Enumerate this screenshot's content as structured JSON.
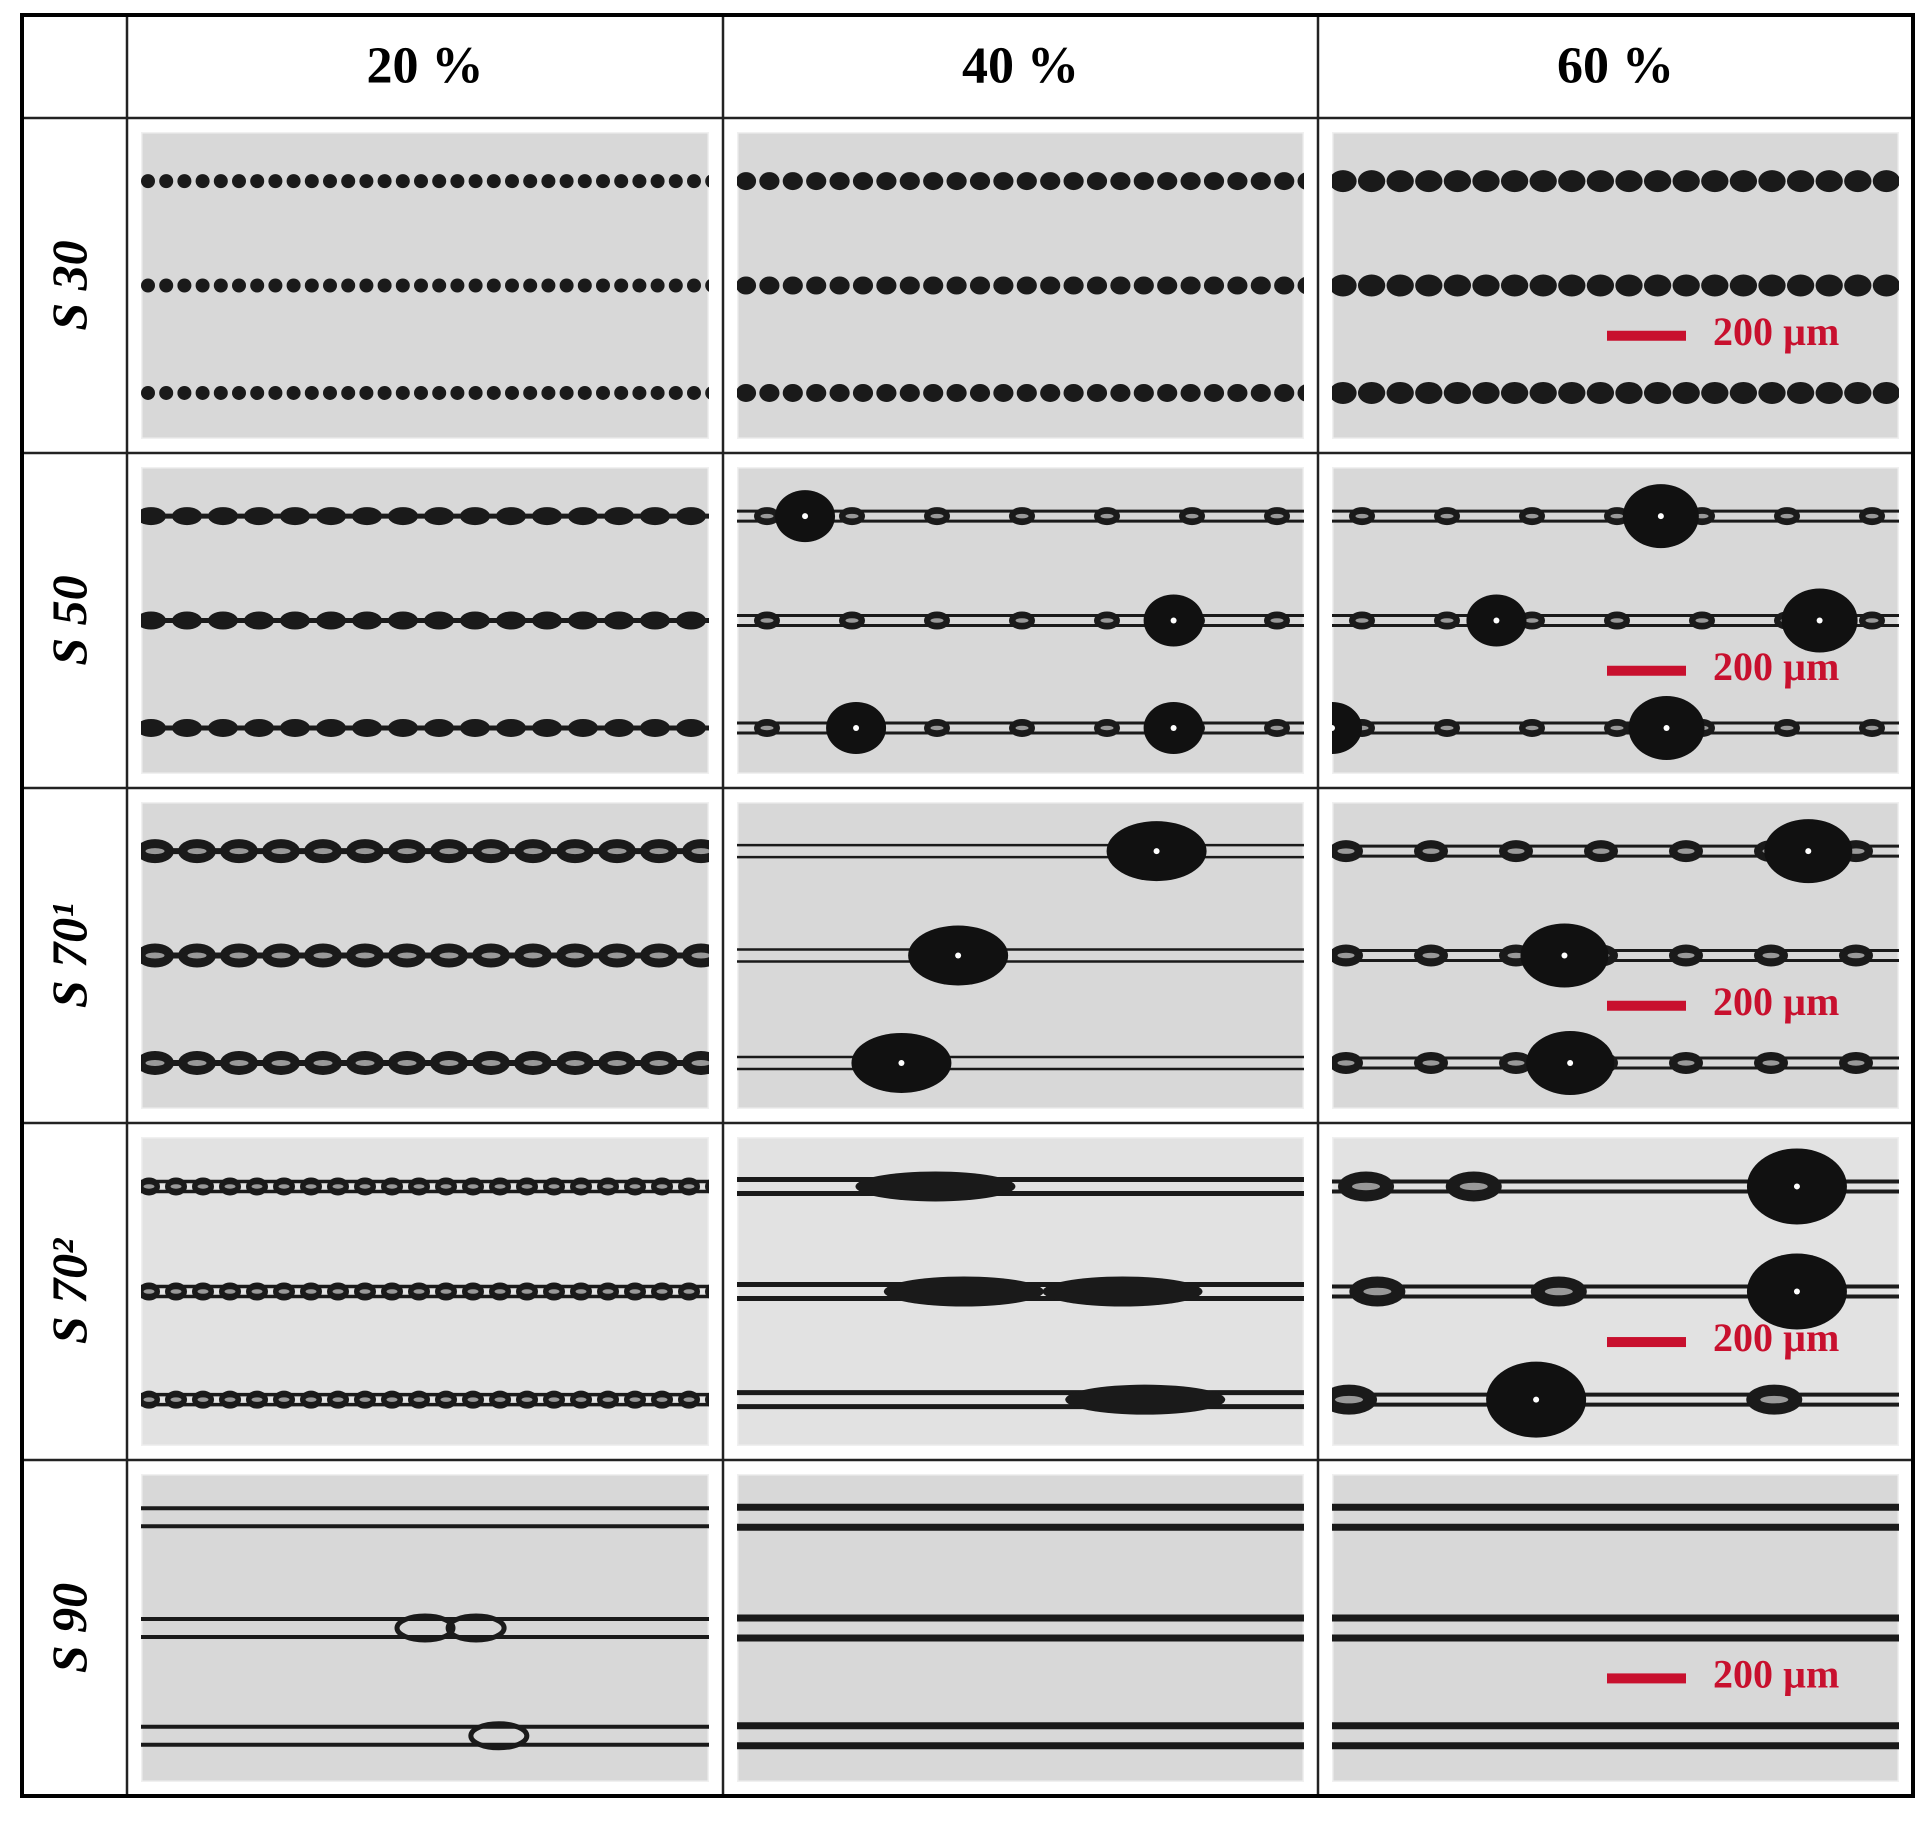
{
  "header": {
    "columns": [
      "20 %",
      "40 %",
      "60 %"
    ]
  },
  "rows": [
    {
      "label": "S 30",
      "scale_bar": "200 µm"
    },
    {
      "label": "S 50",
      "scale_bar": "200 µm"
    },
    {
      "label": "S 70¹",
      "scale_bar": "200 µm"
    },
    {
      "label": "S 70²",
      "scale_bar": "200 µm"
    },
    {
      "label": "S 90",
      "scale_bar": "200 µm"
    }
  ]
}
